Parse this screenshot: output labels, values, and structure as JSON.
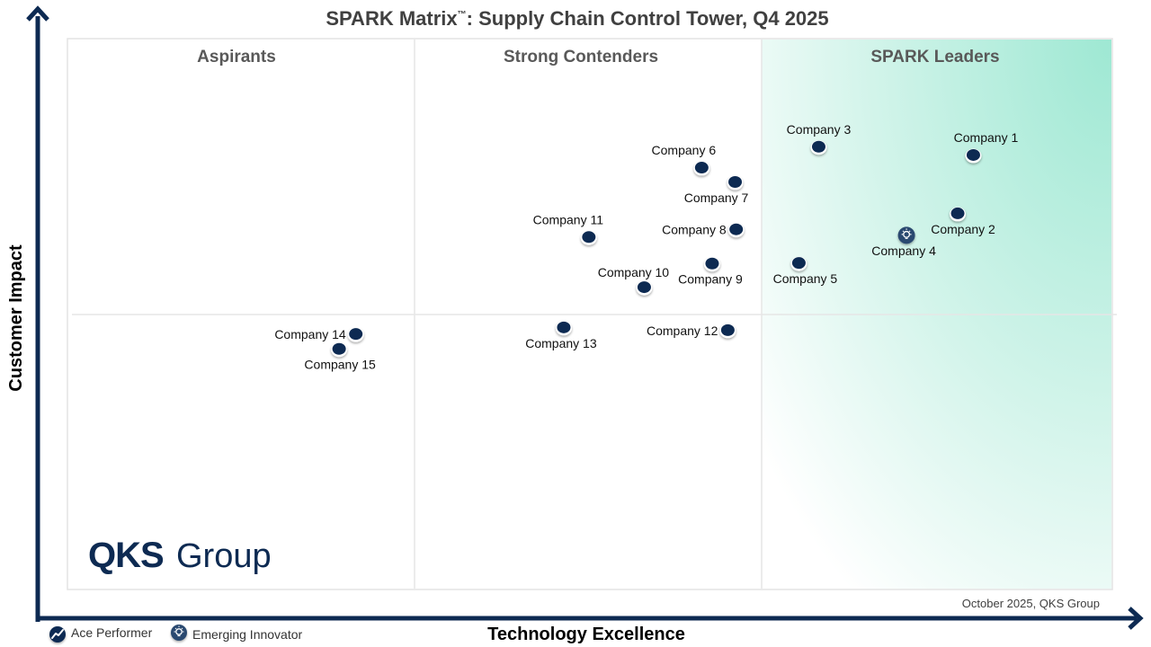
{
  "chart_data": {
    "type": "scatter",
    "title": "SPARK Matrix",
    "title_trademark": "™",
    "title_suffix": ": Supply Chain Control Tower, Q4 2025",
    "xlabel": "Technology Excellence",
    "ylabel": "Customer Impact",
    "xlim": [
      0,
      100
    ],
    "ylim": [
      0,
      100
    ],
    "grid": false,
    "quadrants": {
      "columns": [
        {
          "label": "Aspirants",
          "x_range": [
            0,
            33.33
          ]
        },
        {
          "label": "Strong Contenders",
          "x_range": [
            33.33,
            66.67
          ]
        },
        {
          "label": "SPARK Leaders",
          "x_range": [
            66.67,
            100
          ]
        }
      ],
      "horizontal_divider_y": 50
    },
    "points": [
      {
        "name": "Company 1",
        "x": 86.7,
        "y": 78.8,
        "type": "standard",
        "label_pos": "above"
      },
      {
        "name": "Company 2",
        "x": 85.2,
        "y": 68.2,
        "type": "standard",
        "label_pos": "below"
      },
      {
        "name": "Company 3",
        "x": 71.9,
        "y": 80.3,
        "type": "standard",
        "label_pos": "above"
      },
      {
        "name": "Company 4",
        "x": 80.3,
        "y": 64.3,
        "type": "emerging-innovator",
        "label_pos": "below"
      },
      {
        "name": "Company 5",
        "x": 70.0,
        "y": 59.2,
        "type": "standard",
        "label_pos": "below"
      },
      {
        "name": "Company 6",
        "x": 60.7,
        "y": 76.5,
        "type": "standard",
        "label_pos": "above"
      },
      {
        "name": "Company 7",
        "x": 63.9,
        "y": 73.9,
        "type": "standard",
        "label_pos": "below"
      },
      {
        "name": "Company 8",
        "x": 64.0,
        "y": 65.3,
        "type": "standard",
        "label_pos": "left"
      },
      {
        "name": "Company 9",
        "x": 61.7,
        "y": 59.1,
        "type": "standard",
        "label_pos": "below"
      },
      {
        "name": "Company 10",
        "x": 55.2,
        "y": 54.8,
        "type": "standard",
        "label_pos": "above-left"
      },
      {
        "name": "Company 11",
        "x": 49.9,
        "y": 63.9,
        "type": "standard",
        "label_pos": "above"
      },
      {
        "name": "Company 12",
        "x": 63.2,
        "y": 47.0,
        "type": "standard",
        "label_pos": "left"
      },
      {
        "name": "Company 13",
        "x": 47.5,
        "y": 47.5,
        "type": "standard",
        "label_pos": "below"
      },
      {
        "name": "Company 14",
        "x": 27.6,
        "y": 46.3,
        "type": "standard",
        "label_pos": "left"
      },
      {
        "name": "Company 15",
        "x": 26.0,
        "y": 43.6,
        "type": "standard",
        "label_pos": "below"
      }
    ],
    "legend": {
      "placement": "bottom-left",
      "entries": [
        {
          "label": "Ace Performer",
          "icon": "trend-up-icon"
        },
        {
          "label": "Emerging Innovator",
          "icon": "lightbulb-icon"
        }
      ]
    },
    "annotation": "October 2025, QKS Group"
  },
  "branding": {
    "logo_bold": "QKS",
    "logo_regular": "Group"
  },
  "colors": {
    "marker": "#0d2a52",
    "axis": "#0d2a52",
    "leader_gradient_strong": "#9ee8d3",
    "leader_gradient_light": "#ffffff",
    "divider": "#e6e6e6"
  }
}
